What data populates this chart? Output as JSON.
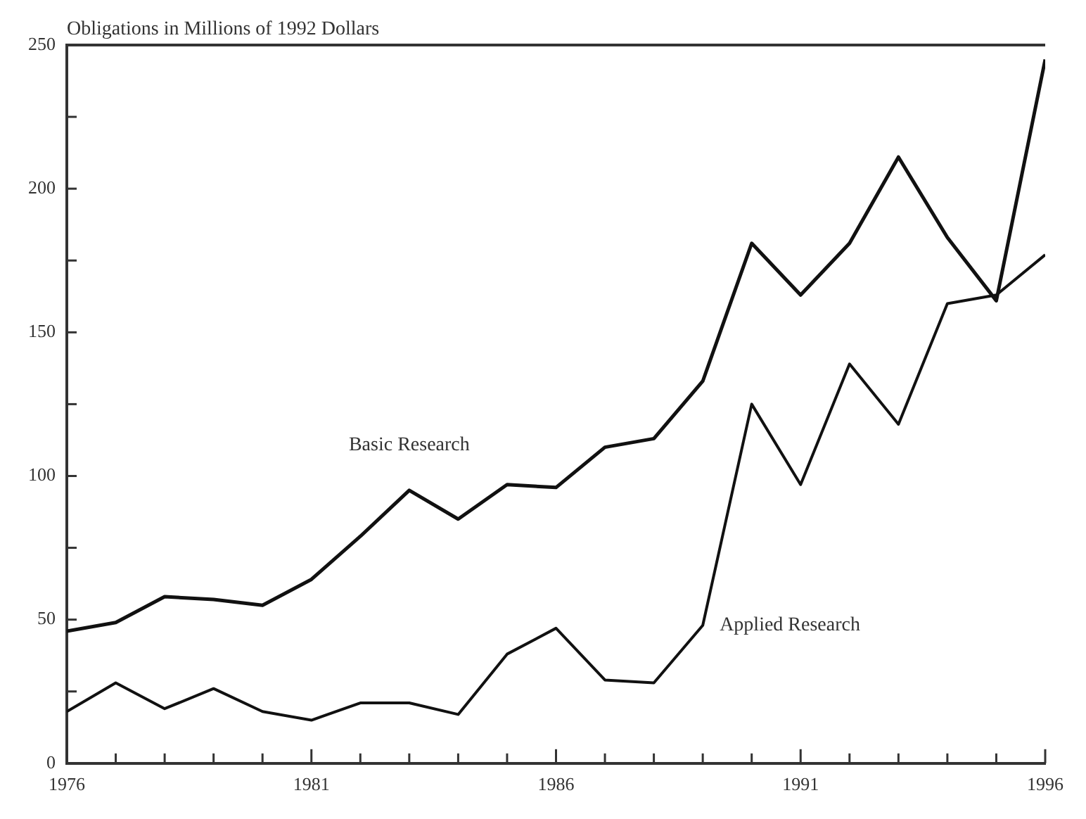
{
  "chart_data": {
    "type": "line",
    "title": "Obligations in Millions of 1992 Dollars",
    "x": [
      1976,
      1977,
      1978,
      1979,
      1980,
      1981,
      1982,
      1983,
      1984,
      1985,
      1986,
      1987,
      1988,
      1989,
      1990,
      1991,
      1992,
      1993,
      1994,
      1995,
      1996
    ],
    "series": [
      {
        "name": "Basic Research",
        "color": "#111111",
        "values": [
          46,
          49,
          58,
          57,
          55,
          64,
          79,
          95,
          85,
          97,
          96,
          110,
          113,
          133,
          181,
          163,
          181,
          211,
          183,
          161,
          245
        ]
      },
      {
        "name": "Applied Research",
        "color": "#111111",
        "values": [
          18,
          28,
          19,
          26,
          18,
          15,
          21,
          21,
          17,
          38,
          47,
          29,
          28,
          48,
          125,
          97,
          139,
          118,
          160,
          163,
          177
        ]
      }
    ],
    "xlim": [
      1976,
      1996
    ],
    "xticks": [
      1976,
      {
        "value": 1977,
        "label": null
      },
      {
        "value": 1978,
        "label": null
      },
      {
        "value": 1979,
        "label": null
      },
      {
        "value": 1980,
        "label": null
      },
      1981,
      {
        "value": 1982,
        "label": null
      },
      {
        "value": 1983,
        "label": null
      },
      {
        "value": 1984,
        "label": null
      },
      {
        "value": 1985,
        "label": null
      },
      1986,
      {
        "value": 1987,
        "label": null
      },
      {
        "value": 1988,
        "label": null
      },
      {
        "value": 1989,
        "label": null
      },
      {
        "value": 1990,
        "label": null
      },
      1991,
      {
        "value": 1992,
        "label": null
      },
      {
        "value": 1993,
        "label": null
      },
      {
        "value": 1994,
        "label": null
      },
      {
        "value": 1995,
        "label": null
      },
      1996
    ],
    "ylim": [
      0,
      250
    ],
    "yticks": [
      0,
      {
        "value": 25,
        "label": null
      },
      50,
      {
        "value": 75,
        "label": null
      },
      100,
      {
        "value": 125,
        "label": null
      },
      150,
      {
        "value": 175,
        "label": null
      },
      200,
      {
        "value": 225,
        "label": null
      },
      250
    ],
    "grid": false,
    "legend": false,
    "marker": "none",
    "line_style": "solid"
  }
}
